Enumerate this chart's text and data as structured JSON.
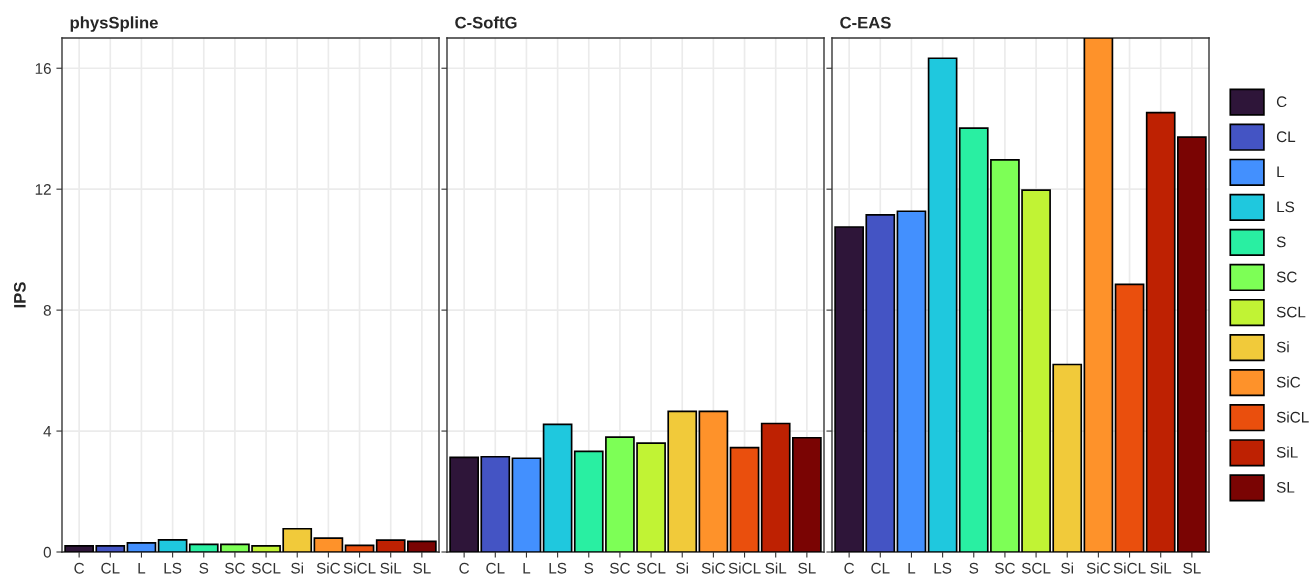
{
  "chart_data": [
    {
      "type": "bar",
      "title": "physSpline",
      "ylabel": "IPS",
      "categories": [
        "C",
        "CL",
        "L",
        "LS",
        "S",
        "SC",
        "SCL",
        "Si",
        "SiC",
        "SiCL",
        "SiL",
        "SL"
      ],
      "values": [
        0.2,
        0.2,
        0.3,
        0.4,
        0.25,
        0.25,
        0.2,
        0.77,
        0.46,
        0.22,
        0.39,
        0.35
      ],
      "colors": [
        "#2e1539",
        "#4454c4",
        "#4390fe",
        "#1fc8de",
        "#29efa2",
        "#7dff56",
        "#c1f334",
        "#f1ca3a",
        "#fe922a",
        "#ea4f0d",
        "#be2102",
        "#7a0403"
      ],
      "ylim": [
        0,
        17
      ],
      "yticks": [
        0,
        4,
        8,
        12,
        16
      ],
      "grid": true
    },
    {
      "type": "bar",
      "title": "C-SoftG",
      "categories": [
        "C",
        "CL",
        "L",
        "LS",
        "S",
        "SC",
        "SCL",
        "Si",
        "SiC",
        "SiCL",
        "SiL",
        "SL"
      ],
      "values": [
        3.13,
        3.15,
        3.1,
        4.22,
        3.33,
        3.8,
        3.6,
        4.65,
        4.65,
        3.45,
        4.25,
        3.78
      ],
      "colors": [
        "#2e1539",
        "#4454c4",
        "#4390fe",
        "#1fc8de",
        "#29efa2",
        "#7dff56",
        "#c1f334",
        "#f1ca3a",
        "#fe922a",
        "#ea4f0d",
        "#be2102",
        "#7a0403"
      ],
      "ylim": [
        0,
        17
      ],
      "yticks": [
        0,
        4,
        8,
        12,
        16
      ],
      "grid": true,
      "tick_labels": "x"
    },
    {
      "type": "bar",
      "title": "C-EAS",
      "categories": [
        "C",
        "CL",
        "L",
        "LS",
        "S",
        "SC",
        "SCL",
        "Si",
        "SiC",
        "SiCL",
        "SiL",
        "SL"
      ],
      "series": [
        {
          "name": "C",
          "color": "#2e1539",
          "values": [
            10.75,
            null,
            null,
            null,
            null,
            null,
            null,
            null,
            null,
            null,
            null,
            null
          ]
        },
        {
          "name": "CL",
          "color": "#4454c4",
          "values": [
            null,
            11.15,
            null,
            null,
            null,
            null,
            null,
            null,
            null,
            null,
            null,
            null
          ]
        },
        {
          "name": "L",
          "color": "#4390fe",
          "values": [
            null,
            null,
            11.27,
            null,
            null,
            null,
            null,
            null,
            null,
            null,
            null,
            null
          ]
        },
        {
          "name": "LS",
          "color": "#1fc8de",
          "values": [
            null,
            null,
            null,
            16.33,
            null,
            null,
            null,
            null,
            null,
            null,
            null,
            null
          ]
        },
        {
          "name": "S",
          "color": "#29efa2",
          "values": [
            null,
            null,
            null,
            null,
            14.02,
            null,
            null,
            null,
            null,
            null,
            null,
            null
          ]
        },
        {
          "name": "SC",
          "color": "#7dff56",
          "values": [
            null,
            null,
            null,
            null,
            null,
            12.97,
            null,
            null,
            null,
            null,
            null,
            null
          ]
        },
        {
          "name": "SCL",
          "color": "#c1f334",
          "values": [
            null,
            null,
            null,
            null,
            null,
            null,
            11.97,
            null,
            null,
            null,
            null,
            null
          ]
        },
        {
          "name": "Si",
          "color": "#f1ca3a",
          "values": [
            null,
            null,
            null,
            null,
            null,
            null,
            null,
            6.2,
            null,
            null,
            null,
            null
          ]
        },
        {
          "name": "SiC",
          "color": "#fe922a",
          "values": [
            null,
            null,
            null,
            null,
            null,
            null,
            null,
            null,
            17,
            null,
            null,
            null
          ]
        },
        {
          "name": "SiCL",
          "color": "#ea4f0d",
          "values": [
            null,
            null,
            null,
            null,
            null,
            null,
            null,
            null,
            null,
            8.85,
            null,
            null
          ]
        },
        {
          "name": "SiL",
          "color": "#be2102",
          "values": [
            null,
            null,
            null,
            null,
            null,
            null,
            null,
            null,
            null,
            null,
            14.53,
            null
          ]
        },
        {
          "name": "SL",
          "color": "#7a0403",
          "values": [
            null,
            null,
            null,
            null,
            null,
            null,
            null,
            null,
            null,
            null,
            null,
            13.72
          ]
        }
      ],
      "ylim": [
        0,
        17
      ],
      "yticks": [
        0,
        4,
        8,
        12,
        16
      ],
      "grid": true,
      "tick_labels": "x",
      "legend": "right"
    }
  ]
}
